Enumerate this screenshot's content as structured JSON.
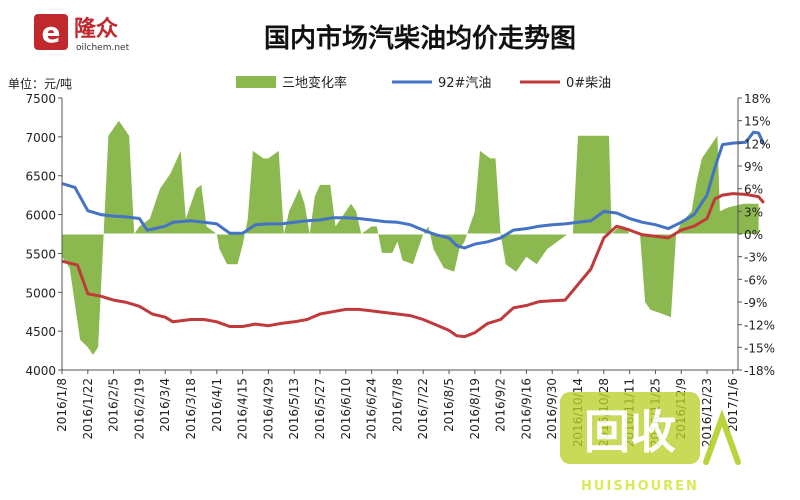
{
  "header": {
    "logo_text": "隆众",
    "logo_sub": "oilchem.net",
    "title": "国内市场汽柴油均价走势图"
  },
  "watermark": {
    "main": "回收",
    "sub": "HUISHOUREN"
  },
  "colors": {
    "gasoline": "#4472c4",
    "diesel": "#c0393b",
    "change": "#8cb850",
    "logo": "#c0282e"
  },
  "chart_data": {
    "type": "line",
    "unit_label": "单位：元/吨",
    "y_left": {
      "min": 4000,
      "max": 7500,
      "step": 500
    },
    "y_right": {
      "min": -18,
      "max": 18,
      "step": 3,
      "format": "percent"
    },
    "x_ticks": [
      "2016/1/8",
      "2016/1/22",
      "2016/2/5",
      "2016/2/19",
      "2016/3/4",
      "2016/3/18",
      "2016/4/1",
      "2016/4/15",
      "2016/4/29",
      "2016/5/13",
      "2016/5/27",
      "2016/6/10",
      "2016/6/24",
      "2016/7/8",
      "2016/7/22",
      "2016/8/5",
      "2016/8/19",
      "2016/9/2",
      "2016/9/16",
      "2016/9/30",
      "2016/10/14",
      "2016/10/28",
      "2016/11/11",
      "2016/11/25",
      "2016/12/9",
      "2016/12/23",
      "2017/1/6"
    ],
    "legend": [
      {
        "key": "change",
        "label": "三地变化率",
        "kind": "area"
      },
      {
        "key": "gasoline",
        "label": "92#汽油",
        "kind": "line"
      },
      {
        "key": "diesel",
        "label": "0#柴油",
        "kind": "line"
      }
    ],
    "series": [
      {
        "key": "gasoline",
        "name": "92#汽油",
        "axis": "left",
        "points": [
          [
            0,
            6400
          ],
          [
            0.5,
            6350
          ],
          [
            1,
            6050
          ],
          [
            1.5,
            6000
          ],
          [
            2,
            5980
          ],
          [
            2.5,
            5970
          ],
          [
            3,
            5950
          ],
          [
            3.3,
            5800
          ],
          [
            3.6,
            5820
          ],
          [
            4,
            5850
          ],
          [
            4.3,
            5900
          ],
          [
            5,
            5920
          ],
          [
            5.5,
            5900
          ],
          [
            6,
            5880
          ],
          [
            6.5,
            5760
          ],
          [
            7,
            5760
          ],
          [
            7.5,
            5870
          ],
          [
            8,
            5880
          ],
          [
            8.5,
            5880
          ],
          [
            9,
            5900
          ],
          [
            9.5,
            5920
          ],
          [
            10,
            5930
          ],
          [
            10.5,
            5960
          ],
          [
            11,
            5960
          ],
          [
            11.5,
            5950
          ],
          [
            12,
            5930
          ],
          [
            12.5,
            5910
          ],
          [
            13,
            5900
          ],
          [
            13.5,
            5870
          ],
          [
            14,
            5800
          ],
          [
            14.5,
            5740
          ],
          [
            15,
            5700
          ],
          [
            15.3,
            5600
          ],
          [
            15.6,
            5570
          ],
          [
            16,
            5620
          ],
          [
            16.5,
            5650
          ],
          [
            17,
            5700
          ],
          [
            17.5,
            5800
          ],
          [
            18,
            5820
          ],
          [
            18.5,
            5850
          ],
          [
            19,
            5870
          ],
          [
            19.5,
            5880
          ],
          [
            20,
            5900
          ],
          [
            20.5,
            5920
          ],
          [
            21,
            6040
          ],
          [
            21.5,
            6020
          ],
          [
            22,
            5950
          ],
          [
            22.5,
            5900
          ],
          [
            23,
            5870
          ],
          [
            23.5,
            5820
          ],
          [
            24,
            5900
          ],
          [
            24.5,
            6000
          ],
          [
            25,
            6250
          ],
          [
            25.3,
            6600
          ],
          [
            25.6,
            6900
          ],
          [
            26,
            6920
          ],
          [
            26.5,
            6930
          ],
          [
            26.8,
            7060
          ],
          [
            27,
            7050
          ],
          [
            27.2,
            6900
          ]
        ]
      },
      {
        "key": "diesel",
        "name": "0#柴油",
        "axis": "left",
        "points": [
          [
            0,
            5400
          ],
          [
            0.6,
            5350
          ],
          [
            1,
            4980
          ],
          [
            1.5,
            4950
          ],
          [
            2,
            4900
          ],
          [
            2.5,
            4870
          ],
          [
            3,
            4820
          ],
          [
            3.5,
            4720
          ],
          [
            4,
            4680
          ],
          [
            4.3,
            4620
          ],
          [
            5,
            4650
          ],
          [
            5.5,
            4650
          ],
          [
            6,
            4620
          ],
          [
            6.5,
            4560
          ],
          [
            7,
            4560
          ],
          [
            7.5,
            4590
          ],
          [
            8,
            4570
          ],
          [
            8.5,
            4600
          ],
          [
            9,
            4620
          ],
          [
            9.5,
            4650
          ],
          [
            10,
            4720
          ],
          [
            10.5,
            4750
          ],
          [
            11,
            4780
          ],
          [
            11.5,
            4780
          ],
          [
            12,
            4760
          ],
          [
            12.5,
            4740
          ],
          [
            13,
            4720
          ],
          [
            13.5,
            4700
          ],
          [
            14,
            4650
          ],
          [
            14.5,
            4580
          ],
          [
            15,
            4510
          ],
          [
            15.3,
            4440
          ],
          [
            15.6,
            4430
          ],
          [
            16,
            4480
          ],
          [
            16.5,
            4600
          ],
          [
            17,
            4650
          ],
          [
            17.5,
            4800
          ],
          [
            18,
            4830
          ],
          [
            18.5,
            4880
          ],
          [
            19,
            4890
          ],
          [
            19.5,
            4900
          ],
          [
            20,
            5100
          ],
          [
            20.5,
            5300
          ],
          [
            21,
            5700
          ],
          [
            21.5,
            5850
          ],
          [
            22,
            5800
          ],
          [
            22.5,
            5740
          ],
          [
            23,
            5720
          ],
          [
            23.5,
            5700
          ],
          [
            24,
            5800
          ],
          [
            24.5,
            5850
          ],
          [
            25,
            5950
          ],
          [
            25.3,
            6200
          ],
          [
            25.6,
            6250
          ],
          [
            26,
            6270
          ],
          [
            26.5,
            6260
          ],
          [
            27,
            6230
          ],
          [
            27.2,
            6150
          ]
        ]
      },
      {
        "key": "change",
        "name": "三地变化率",
        "axis": "right",
        "points": [
          [
            0,
            -3
          ],
          [
            0.3,
            -4.5
          ],
          [
            0.7,
            -14
          ],
          [
            1,
            -15
          ],
          [
            1.2,
            -16
          ],
          [
            1.4,
            -15
          ],
          [
            1.6,
            -1
          ],
          [
            1.8,
            13
          ],
          [
            2.2,
            15
          ],
          [
            2.6,
            13
          ],
          [
            2.8,
            0
          ],
          [
            3,
            1
          ],
          [
            3.4,
            2
          ],
          [
            3.8,
            6
          ],
          [
            4.2,
            8
          ],
          [
            4.6,
            11
          ],
          [
            4.8,
            2
          ],
          [
            5.2,
            6
          ],
          [
            5.4,
            6.5
          ],
          [
            5.6,
            1
          ],
          [
            6,
            0
          ],
          [
            6.1,
            -2
          ],
          [
            6.4,
            -4
          ],
          [
            6.8,
            -4
          ],
          [
            7,
            -1.5
          ],
          [
            7.2,
            2
          ],
          [
            7.4,
            11
          ],
          [
            7.8,
            10
          ],
          [
            8,
            10
          ],
          [
            8.4,
            11
          ],
          [
            8.6,
            0
          ],
          [
            8.8,
            3
          ],
          [
            9.2,
            6
          ],
          [
            9.4,
            4
          ],
          [
            9.6,
            0
          ],
          [
            9.8,
            5
          ],
          [
            10,
            6.5
          ],
          [
            10.4,
            6.5
          ],
          [
            10.6,
            1
          ],
          [
            10.8,
            2
          ],
          [
            11.2,
            4
          ],
          [
            11.4,
            3
          ],
          [
            11.6,
            0
          ],
          [
            12,
            1
          ],
          [
            12.2,
            1
          ],
          [
            12.4,
            -2.5
          ],
          [
            12.8,
            -2.5
          ],
          [
            13,
            -1
          ],
          [
            13.2,
            -3.5
          ],
          [
            13.6,
            -4
          ],
          [
            14,
            0
          ],
          [
            14.2,
            1
          ],
          [
            14.4,
            -2
          ],
          [
            14.8,
            -4.5
          ],
          [
            15.2,
            -5
          ],
          [
            15.4,
            -2
          ],
          [
            15.6,
            -1
          ],
          [
            16,
            3
          ],
          [
            16.2,
            11
          ],
          [
            16.6,
            10
          ],
          [
            16.8,
            10
          ],
          [
            17,
            0
          ],
          [
            17.2,
            -4
          ],
          [
            17.6,
            -5
          ],
          [
            18,
            -3
          ],
          [
            18.4,
            -4
          ],
          [
            18.8,
            -2
          ],
          [
            19.2,
            -1
          ],
          [
            19.6,
            0
          ],
          [
            19.8,
            0
          ],
          [
            20,
            13
          ],
          [
            20.4,
            13
          ],
          [
            20.8,
            13
          ],
          [
            21.2,
            13
          ],
          [
            21.3,
            0
          ],
          [
            21.6,
            1
          ],
          [
            21.8,
            1
          ],
          [
            22,
            0
          ],
          [
            22.4,
            0
          ],
          [
            22.6,
            -9
          ],
          [
            22.8,
            -10
          ],
          [
            23.2,
            -10.5
          ],
          [
            23.6,
            -11
          ],
          [
            23.8,
            0
          ],
          [
            24,
            1.5
          ],
          [
            24.4,
            3
          ],
          [
            24.6,
            7
          ],
          [
            24.8,
            10
          ],
          [
            25.2,
            12
          ],
          [
            25.4,
            13
          ],
          [
            25.5,
            3
          ],
          [
            25.8,
            3.5
          ],
          [
            26.4,
            4
          ],
          [
            27,
            4
          ]
        ]
      }
    ]
  }
}
